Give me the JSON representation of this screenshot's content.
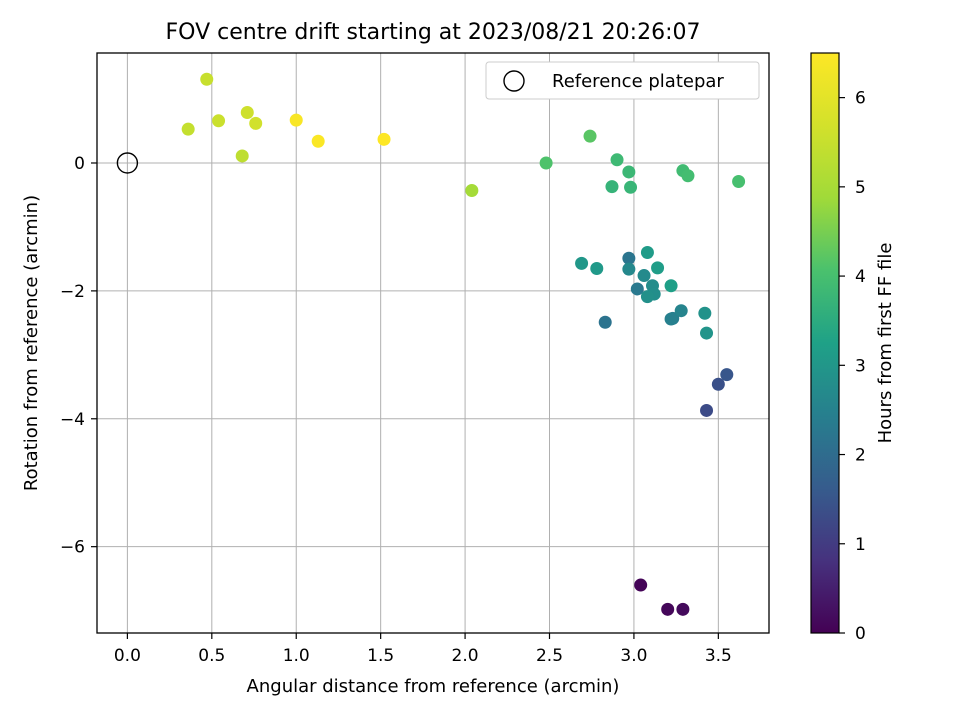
{
  "chart_data": {
    "type": "scatter",
    "title": "FOV centre drift starting at 2023/08/21 20:26:07",
    "xlabel": "Angular distance from reference (arcmin)",
    "ylabel": "Rotation from reference (arcmin)",
    "xlim": [
      -0.18,
      3.8
    ],
    "ylim": [
      -7.35,
      1.72
    ],
    "xticks": [
      0.0,
      0.5,
      1.0,
      1.5,
      2.0,
      2.5,
      3.0,
      3.5
    ],
    "xtick_labels": [
      "0.0",
      "0.5",
      "1.0",
      "1.5",
      "2.0",
      "2.5",
      "3.0",
      "3.5"
    ],
    "yticks": [
      -6,
      -4,
      -2,
      0
    ],
    "ytick_labels": [
      "−6",
      "−4",
      "−2",
      "0"
    ],
    "grid": true,
    "legend": {
      "placement": "top-right",
      "entries": [
        "Reference platepar"
      ]
    },
    "reference_point": {
      "name": "Reference platepar",
      "x": 0.0,
      "y": 0.0,
      "marker": "open-circle"
    },
    "colorbar": {
      "label": "Hours from first FF file",
      "range": [
        0,
        6.5
      ],
      "ticks": [
        0,
        1,
        2,
        3,
        4,
        5,
        6
      ],
      "tick_labels": [
        "0",
        "1",
        "2",
        "3",
        "4",
        "5",
        "6"
      ],
      "colormap": "viridis"
    },
    "points": [
      {
        "x": 3.04,
        "y": -6.6,
        "hours": 0.05
      },
      {
        "x": 3.2,
        "y": -6.98,
        "hours": 0.1
      },
      {
        "x": 3.29,
        "y": -6.98,
        "hours": 0.15
      },
      {
        "x": 3.43,
        "y": -3.87,
        "hours": 1.3
      },
      {
        "x": 3.5,
        "y": -3.46,
        "hours": 1.4
      },
      {
        "x": 3.55,
        "y": -3.31,
        "hours": 1.5
      },
      {
        "x": 2.83,
        "y": -2.49,
        "hours": 2.15
      },
      {
        "x": 2.97,
        "y": -1.49,
        "hours": 2.2
      },
      {
        "x": 3.02,
        "y": -1.97,
        "hours": 2.3
      },
      {
        "x": 3.23,
        "y": -2.43,
        "hours": 2.4
      },
      {
        "x": 3.22,
        "y": -2.44,
        "hours": 2.45
      },
      {
        "x": 3.28,
        "y": -2.31,
        "hours": 2.55
      },
      {
        "x": 2.97,
        "y": -1.66,
        "hours": 2.65
      },
      {
        "x": 3.06,
        "y": -1.76,
        "hours": 2.7
      },
      {
        "x": 3.11,
        "y": -1.92,
        "hours": 2.75
      },
      {
        "x": 3.12,
        "y": -2.05,
        "hours": 2.8
      },
      {
        "x": 3.08,
        "y": -2.09,
        "hours": 2.85
      },
      {
        "x": 3.42,
        "y": -2.35,
        "hours": 2.9
      },
      {
        "x": 3.43,
        "y": -2.66,
        "hours": 2.95
      },
      {
        "x": 2.69,
        "y": -1.57,
        "hours": 3.0
      },
      {
        "x": 2.78,
        "y": -1.65,
        "hours": 3.05
      },
      {
        "x": 3.08,
        "y": -1.4,
        "hours": 3.1
      },
      {
        "x": 3.14,
        "y": -1.64,
        "hours": 3.15
      },
      {
        "x": 3.22,
        "y": -1.92,
        "hours": 3.2
      },
      {
        "x": 2.87,
        "y": -0.37,
        "hours": 3.7
      },
      {
        "x": 2.98,
        "y": -0.38,
        "hours": 3.75
      },
      {
        "x": 2.97,
        "y": -0.14,
        "hours": 3.8
      },
      {
        "x": 2.9,
        "y": 0.05,
        "hours": 3.85
      },
      {
        "x": 3.29,
        "y": -0.12,
        "hours": 3.9
      },
      {
        "x": 3.32,
        "y": -0.2,
        "hours": 3.95
      },
      {
        "x": 3.62,
        "y": -0.29,
        "hours": 4.0
      },
      {
        "x": 2.48,
        "y": 0.0,
        "hours": 4.1
      },
      {
        "x": 2.74,
        "y": 0.42,
        "hours": 4.2
      },
      {
        "x": 2.04,
        "y": -0.43,
        "hours": 4.95
      },
      {
        "x": 0.68,
        "y": 0.11,
        "hours": 5.35
      },
      {
        "x": 0.36,
        "y": 0.53,
        "hours": 5.45
      },
      {
        "x": 0.47,
        "y": 1.31,
        "hours": 5.5
      },
      {
        "x": 0.54,
        "y": 0.66,
        "hours": 5.55
      },
      {
        "x": 0.71,
        "y": 0.79,
        "hours": 5.6
      },
      {
        "x": 0.76,
        "y": 0.62,
        "hours": 5.65
      },
      {
        "x": 1.0,
        "y": 0.67,
        "hours": 6.4
      },
      {
        "x": 1.13,
        "y": 0.34,
        "hours": 6.45
      },
      {
        "x": 1.52,
        "y": 0.37,
        "hours": 6.5
      }
    ]
  }
}
